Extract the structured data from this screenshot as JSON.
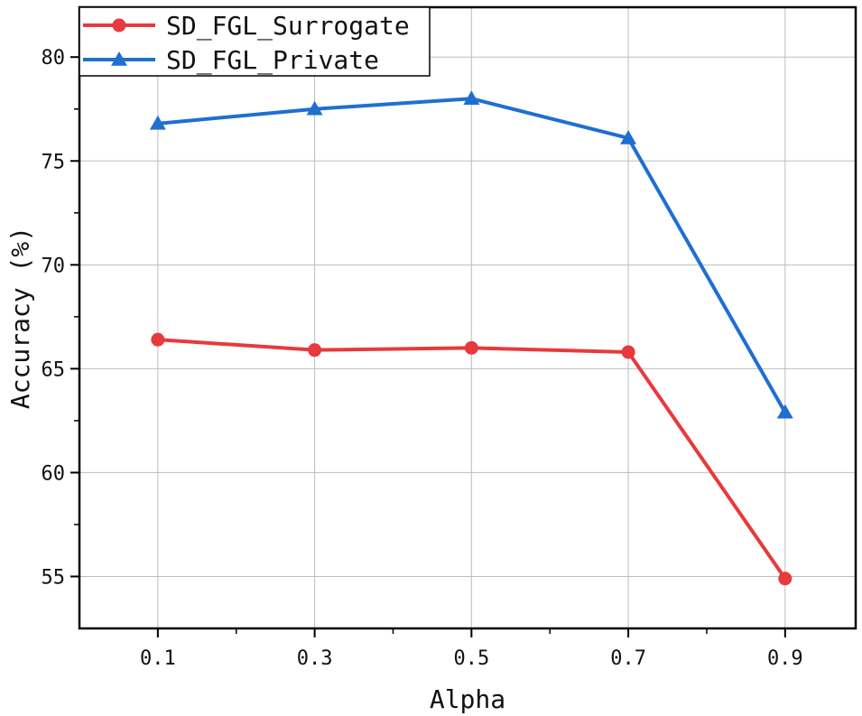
{
  "chart_data": {
    "type": "line",
    "xlabel": "Alpha",
    "ylabel": "Accuracy (%)",
    "x": [
      0.1,
      0.3,
      0.5,
      0.7,
      0.9
    ],
    "x_tick_labels": [
      "0.1",
      "0.3",
      "0.5",
      "0.7",
      "0.9"
    ],
    "xlim": [
      0.0,
      0.99
    ],
    "ylim": [
      52.5,
      82.4
    ],
    "y_ticks": [
      55,
      60,
      65,
      70,
      75,
      80
    ],
    "grid": true,
    "legend_position": "top-left",
    "series": [
      {
        "name": "SD_FGL_Surrogate",
        "color": "#e8393c",
        "marker": "circle",
        "values": [
          66.4,
          65.9,
          66.0,
          65.8,
          54.9
        ]
      },
      {
        "name": "SD_FGL_Private",
        "color": "#1f6fd1",
        "marker": "triangle",
        "values": [
          76.8,
          77.5,
          78.0,
          76.1,
          62.9
        ]
      }
    ]
  }
}
